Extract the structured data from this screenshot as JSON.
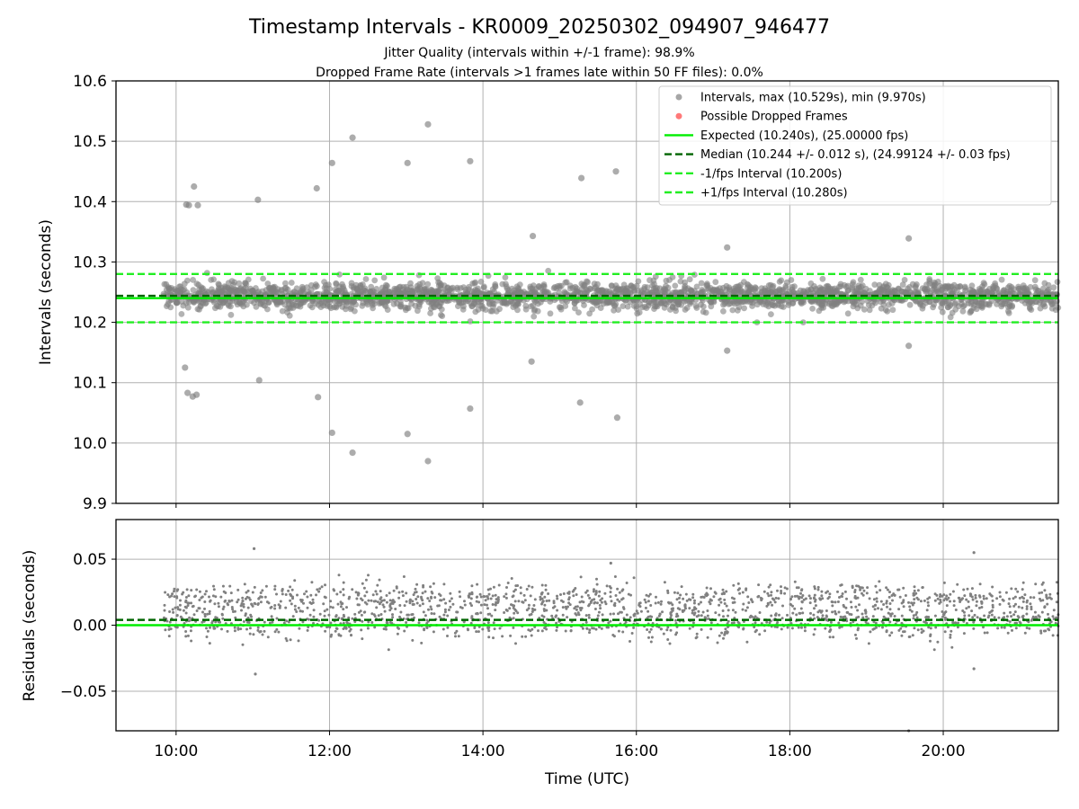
{
  "figure": {
    "title": "Timestamp Intervals - KR0009_20250302_094907_946477",
    "subtitle_1": "Jitter Quality (intervals within +/-1 frame): 98.9%",
    "subtitle_2": "Dropped Frame Rate (intervals >1 frames late within 50 FF files): 0.0%"
  },
  "colors": {
    "points": "#808080",
    "dropped": "#ff4040",
    "expected": "#00ee00",
    "median": "#006400",
    "fps_interval": "#22ee22",
    "grid": "#b0b0b0"
  },
  "chart_data": [
    {
      "type": "scatter",
      "ylabel": "Intervals (seconds)",
      "xlim": [
        "09:13",
        "21:30"
      ],
      "ylim": [
        9.9,
        10.6
      ],
      "yticks": [
        "9.9",
        "10.0",
        "10.1",
        "10.2",
        "10.3",
        "10.4",
        "10.5",
        "10.6"
      ],
      "grid": true,
      "legend_position": "top-right",
      "legend": [
        {
          "label": "Intervals, max (10.529s), min (9.970s)",
          "marker": "dot",
          "color": "#808080"
        },
        {
          "label": "Possible Dropped Frames",
          "marker": "dot",
          "color": "#ff4040"
        },
        {
          "label": "Expected (10.240s), (25.00000 fps)",
          "marker": "solid",
          "color": "#00ee00"
        },
        {
          "label": "Median (10.244 +/- 0.012 s), (24.99124 +/- 0.03 fps)",
          "marker": "dashed",
          "color": "#006400"
        },
        {
          "label": "-1/fps Interval (10.200s)",
          "marker": "dashed",
          "color": "#22ee22"
        },
        {
          "label": "+1/fps Interval (10.280s)",
          "marker": "dashed",
          "color": "#22ee22"
        }
      ],
      "reference_lines": [
        {
          "name": "Expected",
          "y": 10.24,
          "style": "solid"
        },
        {
          "name": "Median",
          "y": 10.244,
          "style": "dashed"
        },
        {
          "name": "-1/fps Interval",
          "y": 10.2,
          "style": "dashed"
        },
        {
          "name": "+1/fps Interval",
          "y": 10.28,
          "style": "dashed"
        }
      ],
      "series": [
        {
          "name": "Intervals",
          "bulk": {
            "x_start": "09:50",
            "x_end": "21:30",
            "y_median": 10.244,
            "y_spread": 0.02,
            "count": 2400
          },
          "outliers": [
            {
              "x": "10:08",
              "y": 10.395
            },
            {
              "x": "10:10",
              "y": 10.394
            },
            {
              "x": "10:14",
              "y": 10.425
            },
            {
              "x": "10:17",
              "y": 10.394
            },
            {
              "x": "11:04",
              "y": 10.403
            },
            {
              "x": "11:50",
              "y": 10.422
            },
            {
              "x": "12:02",
              "y": 10.464
            },
            {
              "x": "12:18",
              "y": 10.506
            },
            {
              "x": "13:01",
              "y": 10.464
            },
            {
              "x": "13:17",
              "y": 10.528
            },
            {
              "x": "13:50",
              "y": 10.467
            },
            {
              "x": "15:17",
              "y": 10.439
            },
            {
              "x": "15:44",
              "y": 10.45
            },
            {
              "x": "14:39",
              "y": 10.343
            },
            {
              "x": "17:11",
              "y": 10.324
            },
            {
              "x": "19:33",
              "y": 10.339
            },
            {
              "x": "10:07",
              "y": 10.125
            },
            {
              "x": "10:09",
              "y": 10.083
            },
            {
              "x": "10:13",
              "y": 10.077
            },
            {
              "x": "10:16",
              "y": 10.08
            },
            {
              "x": "11:05",
              "y": 10.104
            },
            {
              "x": "11:51",
              "y": 10.076
            },
            {
              "x": "12:02",
              "y": 10.017
            },
            {
              "x": "12:18",
              "y": 9.984
            },
            {
              "x": "13:01",
              "y": 10.015
            },
            {
              "x": "13:17",
              "y": 9.97
            },
            {
              "x": "13:50",
              "y": 10.057
            },
            {
              "x": "14:38",
              "y": 10.135
            },
            {
              "x": "15:16",
              "y": 10.067
            },
            {
              "x": "15:45",
              "y": 10.042
            },
            {
              "x": "17:11",
              "y": 10.153
            },
            {
              "x": "19:33",
              "y": 10.161
            }
          ]
        }
      ]
    },
    {
      "type": "scatter",
      "xlabel": "Time (UTC)",
      "ylabel": "Residuals (seconds)",
      "xlim": [
        "09:13",
        "21:30"
      ],
      "ylim": [
        -0.08,
        0.08
      ],
      "xticks": [
        "10:00",
        "12:00",
        "14:00",
        "16:00",
        "18:00",
        "20:00"
      ],
      "yticks": [
        "−0.05",
        "0.00",
        "0.05"
      ],
      "ytick_values": [
        -0.05,
        0,
        0.05
      ],
      "grid": true,
      "reference_lines": [
        {
          "name": "Median",
          "y": 0.004,
          "style": "dashed"
        },
        {
          "name": "Zero",
          "y": 0.0,
          "style": "solid"
        }
      ],
      "series": [
        {
          "name": "Residuals",
          "bulk": {
            "x_start": "09:50",
            "x_end": "21:30",
            "bands": [
              0.002,
              0.02
            ],
            "spread": 0.01,
            "count": 1900
          },
          "outliers": [
            {
              "x": "11:01",
              "y": 0.058
            },
            {
              "x": "20:24",
              "y": 0.055
            },
            {
              "x": "11:02",
              "y": -0.037
            },
            {
              "x": "20:24",
              "y": -0.033
            },
            {
              "x": "19:33",
              "y": -0.08
            },
            {
              "x": "15:40",
              "y": 0.047
            }
          ]
        }
      ]
    }
  ]
}
